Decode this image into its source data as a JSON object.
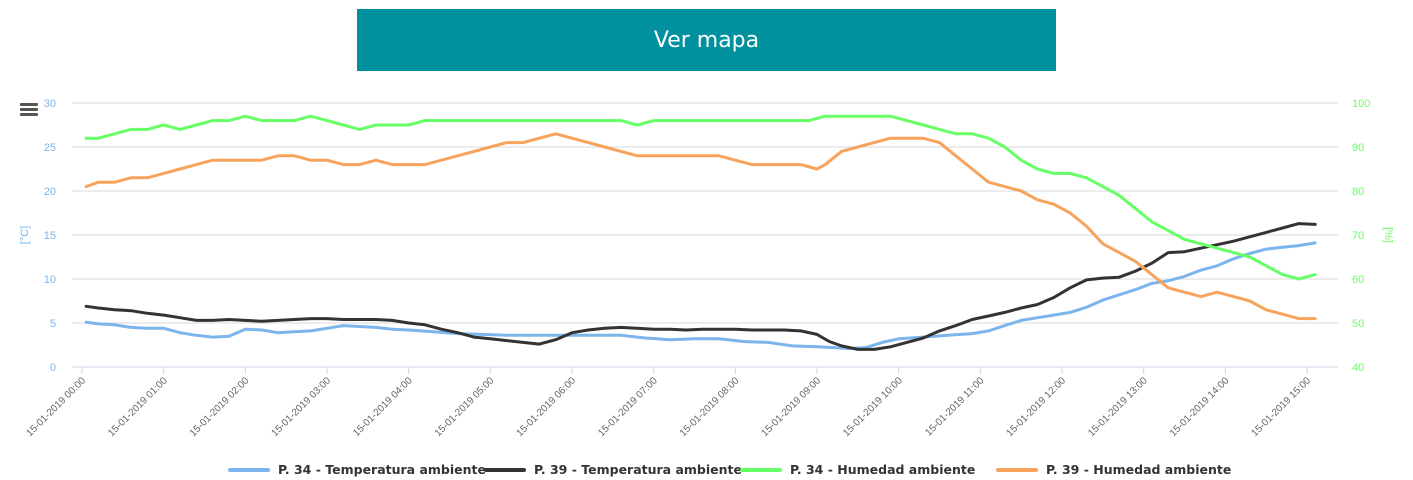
{
  "header": {
    "map_button_label": "Ver mapa"
  },
  "toolbar": {
    "menu_icon": "hamburger-menu-icon"
  },
  "colors": {
    "button_bg": "#00909e",
    "left_axis": "#7cb5ec",
    "right_axis": "#66ff66",
    "grid": "#d8d8d8"
  },
  "chart_data": {
    "type": "line",
    "x_categories": [
      "15-01-2019 00:00",
      "15-01-2019 01:00",
      "15-01-2019 02:00",
      "15-01-2019 03:00",
      "15-01-2019 04:00",
      "15-01-2019 05:00",
      "15-01-2019 06:00",
      "15-01-2019 07:00",
      "15-01-2019 08:00",
      "15-01-2019 09:00",
      "15-01-2019 10:00",
      "15-01-2019 11:00",
      "15-01-2019 12:00",
      "15-01-2019 13:00",
      "15-01-2019 14:00",
      "15-01-2019 15:00"
    ],
    "y_left": {
      "label": "[°C]",
      "min": 0,
      "max": 30,
      "ticks": [
        0,
        5,
        10,
        15,
        20,
        25,
        30
      ]
    },
    "y_right": {
      "label": "[%]",
      "min": 40,
      "max": 100,
      "ticks": [
        40,
        50,
        60,
        70,
        80,
        90,
        100
      ]
    },
    "grid": true,
    "legend_position": "bottom",
    "series": [
      {
        "name": "P. 34 - Temperatura ambiente",
        "axis": "left",
        "color": "#7cb5ec",
        "points": [
          [
            0.05,
            5.1
          ],
          [
            0.2,
            4.9
          ],
          [
            0.4,
            4.8
          ],
          [
            0.6,
            4.5
          ],
          [
            0.8,
            4.4
          ],
          [
            1.0,
            4.4
          ],
          [
            1.2,
            3.9
          ],
          [
            1.4,
            3.6
          ],
          [
            1.6,
            3.4
          ],
          [
            1.8,
            3.5
          ],
          [
            2.0,
            4.3
          ],
          [
            2.2,
            4.2
          ],
          [
            2.4,
            3.9
          ],
          [
            2.6,
            4.0
          ],
          [
            2.8,
            4.1
          ],
          [
            3.0,
            4.4
          ],
          [
            3.2,
            4.7
          ],
          [
            3.4,
            4.6
          ],
          [
            3.6,
            4.5
          ],
          [
            3.8,
            4.3
          ],
          [
            4.0,
            4.2
          ],
          [
            4.3,
            4.0
          ],
          [
            4.6,
            3.8
          ],
          [
            4.9,
            3.7
          ],
          [
            5.2,
            3.6
          ],
          [
            5.5,
            3.6
          ],
          [
            5.8,
            3.6
          ],
          [
            6.2,
            3.6
          ],
          [
            6.6,
            3.6
          ],
          [
            6.9,
            3.3
          ],
          [
            7.2,
            3.1
          ],
          [
            7.5,
            3.2
          ],
          [
            7.8,
            3.2
          ],
          [
            8.1,
            2.9
          ],
          [
            8.4,
            2.8
          ],
          [
            8.7,
            2.4
          ],
          [
            9.0,
            2.3
          ],
          [
            9.2,
            2.2
          ],
          [
            9.4,
            2.1
          ],
          [
            9.6,
            2.2
          ],
          [
            9.8,
            2.8
          ],
          [
            10.0,
            3.2
          ],
          [
            10.3,
            3.4
          ],
          [
            10.6,
            3.6
          ],
          [
            10.9,
            3.8
          ],
          [
            11.1,
            4.1
          ],
          [
            11.3,
            4.7
          ],
          [
            11.5,
            5.3
          ],
          [
            11.7,
            5.6
          ],
          [
            11.9,
            5.9
          ],
          [
            12.1,
            6.2
          ],
          [
            12.3,
            6.8
          ],
          [
            12.5,
            7.6
          ],
          [
            12.7,
            8.2
          ],
          [
            12.9,
            8.8
          ],
          [
            13.1,
            9.5
          ],
          [
            13.3,
            9.8
          ],
          [
            13.5,
            10.3
          ],
          [
            13.7,
            11.0
          ],
          [
            13.9,
            11.5
          ],
          [
            14.1,
            12.3
          ],
          [
            14.3,
            12.9
          ],
          [
            14.5,
            13.4
          ],
          [
            14.7,
            13.6
          ],
          [
            14.9,
            13.8
          ],
          [
            15.1,
            14.1
          ]
        ]
      },
      {
        "name": "P. 39 - Temperatura ambiente",
        "axis": "left",
        "color": "#333333",
        "points": [
          [
            0.05,
            6.9
          ],
          [
            0.2,
            6.7
          ],
          [
            0.4,
            6.5
          ],
          [
            0.6,
            6.4
          ],
          [
            0.8,
            6.1
          ],
          [
            1.0,
            5.9
          ],
          [
            1.2,
            5.6
          ],
          [
            1.4,
            5.3
          ],
          [
            1.6,
            5.3
          ],
          [
            1.8,
            5.4
          ],
          [
            2.0,
            5.3
          ],
          [
            2.2,
            5.2
          ],
          [
            2.4,
            5.3
          ],
          [
            2.6,
            5.4
          ],
          [
            2.8,
            5.5
          ],
          [
            3.0,
            5.5
          ],
          [
            3.2,
            5.4
          ],
          [
            3.4,
            5.4
          ],
          [
            3.6,
            5.4
          ],
          [
            3.8,
            5.3
          ],
          [
            4.0,
            5.0
          ],
          [
            4.2,
            4.8
          ],
          [
            4.4,
            4.3
          ],
          [
            4.6,
            3.9
          ],
          [
            4.8,
            3.4
          ],
          [
            5.0,
            3.2
          ],
          [
            5.2,
            3.0
          ],
          [
            5.4,
            2.8
          ],
          [
            5.6,
            2.6
          ],
          [
            5.8,
            3.1
          ],
          [
            6.0,
            3.9
          ],
          [
            6.2,
            4.2
          ],
          [
            6.4,
            4.4
          ],
          [
            6.6,
            4.5
          ],
          [
            6.8,
            4.4
          ],
          [
            7.0,
            4.3
          ],
          [
            7.2,
            4.3
          ],
          [
            7.4,
            4.2
          ],
          [
            7.6,
            4.3
          ],
          [
            7.8,
            4.3
          ],
          [
            8.0,
            4.3
          ],
          [
            8.2,
            4.2
          ],
          [
            8.4,
            4.2
          ],
          [
            8.6,
            4.2
          ],
          [
            8.8,
            4.1
          ],
          [
            9.0,
            3.7
          ],
          [
            9.15,
            2.9
          ],
          [
            9.3,
            2.4
          ],
          [
            9.5,
            2.0
          ],
          [
            9.7,
            2.0
          ],
          [
            9.9,
            2.3
          ],
          [
            10.1,
            2.8
          ],
          [
            10.3,
            3.3
          ],
          [
            10.5,
            4.1
          ],
          [
            10.7,
            4.7
          ],
          [
            10.9,
            5.4
          ],
          [
            11.1,
            5.8
          ],
          [
            11.3,
            6.2
          ],
          [
            11.5,
            6.7
          ],
          [
            11.7,
            7.1
          ],
          [
            11.9,
            7.9
          ],
          [
            12.1,
            9.0
          ],
          [
            12.3,
            9.9
          ],
          [
            12.5,
            10.1
          ],
          [
            12.7,
            10.2
          ],
          [
            12.9,
            10.9
          ],
          [
            13.1,
            11.8
          ],
          [
            13.3,
            13.0
          ],
          [
            13.5,
            13.1
          ],
          [
            13.7,
            13.5
          ],
          [
            13.9,
            13.9
          ],
          [
            14.1,
            14.3
          ],
          [
            14.3,
            14.8
          ],
          [
            14.5,
            15.3
          ],
          [
            14.7,
            15.8
          ],
          [
            14.9,
            16.3
          ],
          [
            15.1,
            16.2
          ]
        ]
      },
      {
        "name": "P. 34 - Humedad ambiente",
        "axis": "right",
        "color": "#66ff66",
        "points": [
          [
            0.05,
            92
          ],
          [
            0.2,
            92
          ],
          [
            0.4,
            93
          ],
          [
            0.6,
            94
          ],
          [
            0.8,
            94
          ],
          [
            1.0,
            95
          ],
          [
            1.2,
            94
          ],
          [
            1.4,
            95
          ],
          [
            1.6,
            96
          ],
          [
            1.8,
            96
          ],
          [
            2.0,
            97
          ],
          [
            2.2,
            96
          ],
          [
            2.4,
            96
          ],
          [
            2.6,
            96
          ],
          [
            2.8,
            97
          ],
          [
            3.0,
            96
          ],
          [
            3.2,
            95
          ],
          [
            3.4,
            94
          ],
          [
            3.6,
            95
          ],
          [
            3.8,
            95
          ],
          [
            4.0,
            95
          ],
          [
            4.2,
            96
          ],
          [
            4.6,
            96
          ],
          [
            5.0,
            96
          ],
          [
            5.4,
            96
          ],
          [
            5.8,
            96
          ],
          [
            6.2,
            96
          ],
          [
            6.6,
            96
          ],
          [
            6.8,
            95
          ],
          [
            7.0,
            96
          ],
          [
            7.4,
            96
          ],
          [
            7.8,
            96
          ],
          [
            8.2,
            96
          ],
          [
            8.6,
            96
          ],
          [
            8.9,
            96
          ],
          [
            9.1,
            97
          ],
          [
            9.5,
            97
          ],
          [
            9.9,
            97
          ],
          [
            10.1,
            96
          ],
          [
            10.3,
            95
          ],
          [
            10.5,
            94
          ],
          [
            10.7,
            93
          ],
          [
            10.9,
            93
          ],
          [
            11.1,
            92
          ],
          [
            11.3,
            90
          ],
          [
            11.5,
            87
          ],
          [
            11.7,
            85
          ],
          [
            11.9,
            84
          ],
          [
            12.1,
            84
          ],
          [
            12.3,
            83
          ],
          [
            12.5,
            81
          ],
          [
            12.7,
            79
          ],
          [
            12.9,
            76
          ],
          [
            13.1,
            73
          ],
          [
            13.3,
            71
          ],
          [
            13.5,
            69
          ],
          [
            13.7,
            68
          ],
          [
            13.9,
            67
          ],
          [
            14.1,
            66
          ],
          [
            14.3,
            65
          ],
          [
            14.5,
            63
          ],
          [
            14.7,
            61
          ],
          [
            14.9,
            60
          ],
          [
            15.1,
            61
          ]
        ]
      },
      {
        "name": "P. 39 - Humedad ambiente",
        "axis": "right",
        "color": "#f7a35c",
        "points": [
          [
            0.05,
            81
          ],
          [
            0.2,
            82
          ],
          [
            0.4,
            82
          ],
          [
            0.6,
            83
          ],
          [
            0.8,
            83
          ],
          [
            1.0,
            84
          ],
          [
            1.2,
            85
          ],
          [
            1.4,
            86
          ],
          [
            1.6,
            87
          ],
          [
            1.8,
            87
          ],
          [
            2.0,
            87
          ],
          [
            2.2,
            87
          ],
          [
            2.4,
            88
          ],
          [
            2.6,
            88
          ],
          [
            2.8,
            87
          ],
          [
            3.0,
            87
          ],
          [
            3.2,
            86
          ],
          [
            3.4,
            86
          ],
          [
            3.6,
            87
          ],
          [
            3.8,
            86
          ],
          [
            4.0,
            86
          ],
          [
            4.2,
            86
          ],
          [
            4.4,
            87
          ],
          [
            4.6,
            88
          ],
          [
            4.8,
            89
          ],
          [
            5.0,
            90
          ],
          [
            5.2,
            91
          ],
          [
            5.4,
            91
          ],
          [
            5.6,
            92
          ],
          [
            5.8,
            93
          ],
          [
            6.0,
            92
          ],
          [
            6.2,
            91
          ],
          [
            6.4,
            90
          ],
          [
            6.6,
            89
          ],
          [
            6.8,
            88
          ],
          [
            7.0,
            88
          ],
          [
            7.2,
            88
          ],
          [
            7.4,
            88
          ],
          [
            7.6,
            88
          ],
          [
            7.8,
            88
          ],
          [
            8.0,
            87
          ],
          [
            8.2,
            86
          ],
          [
            8.4,
            86
          ],
          [
            8.6,
            86
          ],
          [
            8.8,
            86
          ],
          [
            9.0,
            85
          ],
          [
            9.1,
            86
          ],
          [
            9.3,
            89
          ],
          [
            9.5,
            90
          ],
          [
            9.7,
            91
          ],
          [
            9.9,
            92
          ],
          [
            10.1,
            92
          ],
          [
            10.3,
            92
          ],
          [
            10.5,
            91
          ],
          [
            10.7,
            88
          ],
          [
            10.9,
            85
          ],
          [
            11.1,
            82
          ],
          [
            11.3,
            81
          ],
          [
            11.5,
            80
          ],
          [
            11.7,
            78
          ],
          [
            11.9,
            77
          ],
          [
            12.1,
            75
          ],
          [
            12.3,
            72
          ],
          [
            12.5,
            68
          ],
          [
            12.7,
            66
          ],
          [
            12.9,
            64
          ],
          [
            13.1,
            61
          ],
          [
            13.3,
            58
          ],
          [
            13.5,
            57
          ],
          [
            13.7,
            56
          ],
          [
            13.9,
            57
          ],
          [
            14.1,
            56
          ],
          [
            14.3,
            55
          ],
          [
            14.5,
            53
          ],
          [
            14.7,
            52
          ],
          [
            14.9,
            51
          ],
          [
            15.1,
            51
          ]
        ]
      }
    ]
  }
}
